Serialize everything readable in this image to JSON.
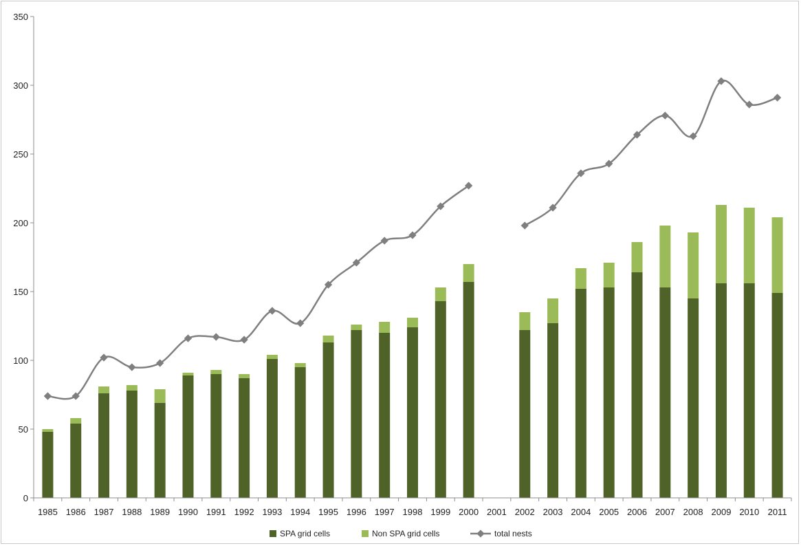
{
  "chart_data": {
    "type": "bar",
    "categories": [
      "1985",
      "1986",
      "1987",
      "1988",
      "1989",
      "1990",
      "1991",
      "1992",
      "1993",
      "1994",
      "1995",
      "1996",
      "1997",
      "1998",
      "1999",
      "2000",
      "2001",
      "2002",
      "2003",
      "2004",
      "2005",
      "2006",
      "2007",
      "2008",
      "2009",
      "2010",
      "2011"
    ],
    "series": [
      {
        "name": "SPA grid cells",
        "kind": "bar-stacked",
        "color": "#4f6228",
        "values": [
          48,
          54,
          76,
          78,
          69,
          89,
          90,
          87,
          101,
          95,
          113,
          122,
          120,
          124,
          143,
          157,
          null,
          122,
          127,
          152,
          153,
          164,
          153,
          145,
          156,
          156,
          149
        ]
      },
      {
        "name": "Non SPA grid cells",
        "kind": "bar-stacked",
        "color": "#9bbb59",
        "values": [
          2,
          4,
          5,
          4,
          10,
          2,
          3,
          3,
          3,
          3,
          5,
          4,
          8,
          7,
          10,
          13,
          null,
          13,
          18,
          15,
          18,
          22,
          45,
          48,
          57,
          55,
          55
        ]
      },
      {
        "name": "total nests",
        "kind": "line",
        "color": "#7f7f7f",
        "values": [
          74,
          74,
          102,
          95,
          98,
          116,
          117,
          115,
          136,
          127,
          155,
          171,
          187,
          191,
          212,
          227,
          null,
          198,
          211,
          236,
          243,
          264,
          278,
          263,
          303,
          286,
          291
        ]
      }
    ],
    "ylim": [
      0,
      350
    ],
    "yticks": [
      0,
      50,
      100,
      150,
      200,
      250,
      300,
      350
    ],
    "legend_position": "bottom",
    "title": "",
    "xlabel": "",
    "ylabel": ""
  }
}
